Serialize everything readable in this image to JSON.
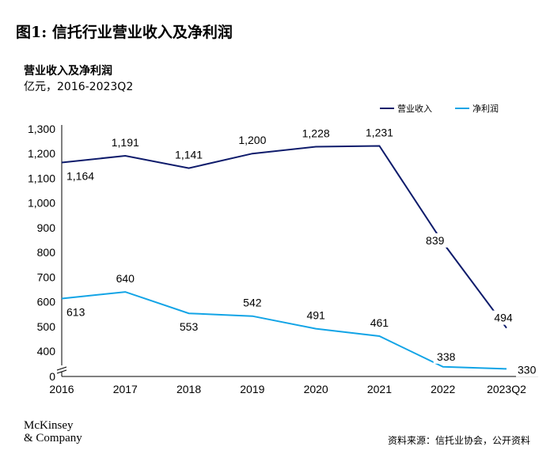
{
  "header": {
    "title": "图1: 信托行业营业收入及净利润",
    "subtitle": "营业收入及净利润",
    "units": "亿元，2016-2023Q2"
  },
  "footer": {
    "logo_line1": "McKinsey",
    "logo_line2": "& Company",
    "source": "资料来源：信托业协会，公开资料"
  },
  "colors": {
    "revenue": "#0e1b6b",
    "profit": "#12a4e6"
  },
  "chart_data": {
    "type": "line",
    "categories": [
      "2016",
      "2017",
      "2018",
      "2019",
      "2020",
      "2021",
      "2022",
      "2023Q2"
    ],
    "series": [
      {
        "name": "营业收入",
        "values": [
          1164,
          1191,
          1141,
          1200,
          1228,
          1231,
          839,
          494
        ],
        "labels": [
          "1,164",
          "1,191",
          "1,141",
          "1,200",
          "1,228",
          "1,231",
          "839",
          "494"
        ]
      },
      {
        "name": "净利润",
        "values": [
          613,
          640,
          553,
          542,
          491,
          461,
          338,
          330
        ],
        "labels": [
          "613",
          "640",
          "553",
          "542",
          "491",
          "461",
          "338",
          "330"
        ]
      }
    ],
    "yticks": [
      "0",
      "400",
      "500",
      "600",
      "700",
      "800",
      "900",
      "1,000",
      "1,100",
      "1,200",
      "1,300"
    ],
    "ylim": [
      300,
      1300
    ],
    "axis_break": true,
    "grid": false,
    "legend_position": "top-right"
  }
}
